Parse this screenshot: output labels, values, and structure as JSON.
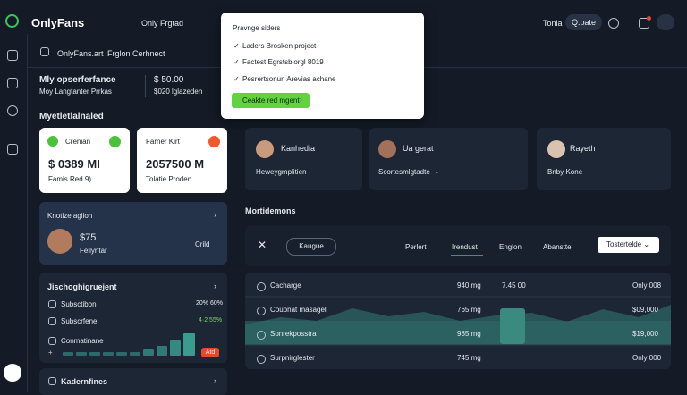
{
  "header": {
    "brand": "OnlyFans",
    "nav": "Only Frgtad",
    "user": "Tonia",
    "search": "Q:bate"
  },
  "breadcrumb": {
    "home": "OnlyFans.art",
    "current": "Frglon Cerhnect"
  },
  "summary": {
    "title": "Mly opserferfance",
    "subtitle": "Moy Langtanter Prrkas",
    "amount": "$ 50.00",
    "amount_note": "$020 lglazeden"
  },
  "popup": {
    "title": "Pravnge siders",
    "items": [
      "Laders Brosken project",
      "Factest Egrstsblorgl 8019",
      "Pesrertsonun Arevias achane"
    ],
    "button": "Ceakte red mgent"
  },
  "section_title": "Myetletlalnaled",
  "cards": [
    {
      "label": "Crenian",
      "value": "$ 0389 MI",
      "note": "Famis Red 9)"
    },
    {
      "label": "Farner Kirt",
      "value": "2057500 M",
      "note": "Tolatie Proden"
    }
  ],
  "profiles": [
    {
      "name": "Kanhedia",
      "role": "Heweygmplitien"
    },
    {
      "name": "Ua gerat",
      "role": "Scortesmlgtadte"
    },
    {
      "name": "Rayeth",
      "role": "Bnby Kone"
    }
  ],
  "promo": {
    "title": "Knotize agiion",
    "price": "$75",
    "name": "Fellyntar",
    "tag": "Crild"
  },
  "stats": {
    "title": "Jischoghigruejent",
    "rows": [
      {
        "label": "Subsctibon",
        "value": "20% 60%"
      },
      {
        "label": "Subscrfene",
        "value": "4·2 55%"
      },
      {
        "label": "Conmatinane"
      }
    ],
    "badge": "Atd"
  },
  "footer_item": "Kadernfines",
  "table": {
    "title": "Mortidemons",
    "filter": "Kaugue",
    "tabs": [
      "Perlert",
      "Irendust",
      "Englon",
      "Abanstte"
    ],
    "sort": "Tostertelde",
    "rows": [
      [
        "Cacharge",
        "940 mg",
        "7.45 00",
        "Only 008"
      ],
      [
        "Coupnat masagel",
        "765 mg",
        "",
        "$09,000"
      ],
      [
        "Sonrekposstra",
        "985 mg",
        "",
        "$19,000"
      ],
      [
        "Surpnirglester",
        "745 mg",
        "",
        "Only 000"
      ]
    ]
  }
}
